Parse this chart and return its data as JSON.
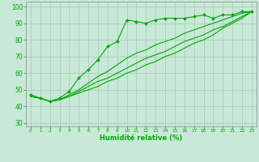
{
  "xlabel": "Humidité relative (%)",
  "bg_color": "#c8e8d8",
  "grid_color": "#a8c8b8",
  "line_color": "#00aa00",
  "xlim": [
    -0.5,
    23.5
  ],
  "ylim": [
    28,
    103
  ],
  "xticks": [
    0,
    1,
    2,
    3,
    4,
    5,
    6,
    7,
    8,
    9,
    10,
    11,
    12,
    13,
    14,
    15,
    16,
    17,
    18,
    19,
    20,
    21,
    22,
    23
  ],
  "yticks": [
    30,
    40,
    50,
    60,
    70,
    80,
    90,
    100
  ],
  "line1_y": [
    47,
    45,
    43,
    45,
    49,
    57,
    62,
    68,
    76,
    79,
    92,
    91,
    90,
    92,
    93,
    93,
    93,
    94,
    95,
    93,
    95,
    95,
    97,
    97
  ],
  "line2_y": [
    46,
    45,
    43,
    44,
    47,
    50,
    54,
    58,
    61,
    65,
    69,
    72,
    74,
    77,
    79,
    81,
    84,
    86,
    88,
    90,
    92,
    94,
    96,
    97
  ],
  "line3_y": [
    46,
    45,
    43,
    44,
    46,
    49,
    52,
    55,
    57,
    60,
    63,
    66,
    69,
    71,
    73,
    76,
    79,
    81,
    83,
    86,
    88,
    91,
    94,
    97
  ],
  "line4_y": [
    46,
    45,
    43,
    44,
    46,
    48,
    50,
    52,
    55,
    57,
    60,
    62,
    65,
    67,
    70,
    72,
    75,
    78,
    80,
    83,
    87,
    90,
    93,
    97
  ],
  "xlabel_fontsize": 6,
  "xtick_fontsize": 4.2,
  "ytick_fontsize": 5.5
}
